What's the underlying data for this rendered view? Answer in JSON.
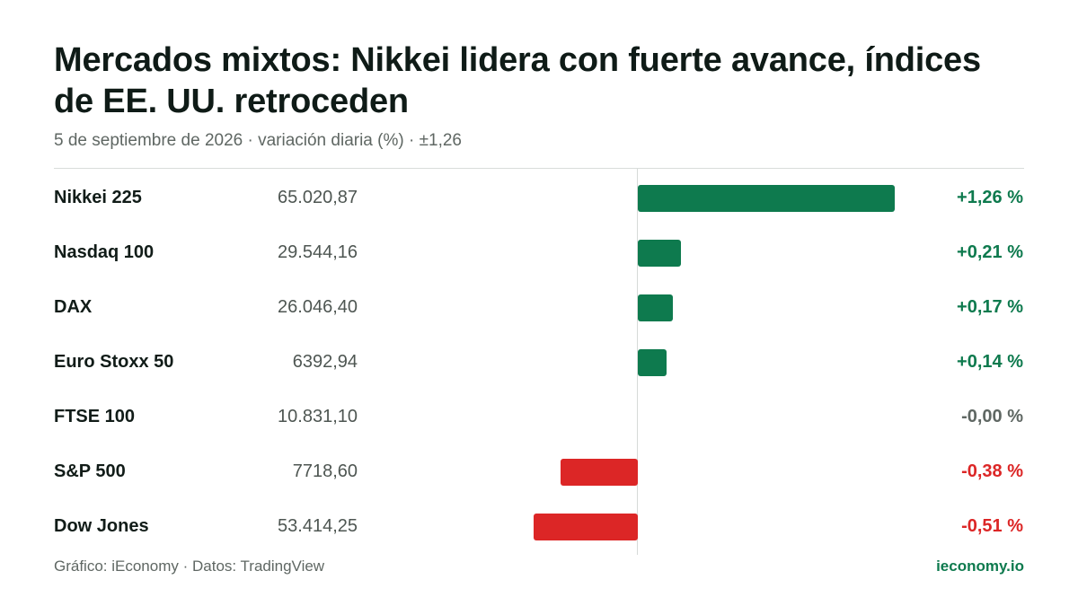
{
  "header": {
    "title": "Mercados mixtos: Nikkei lidera con fuerte avance, índices de EE. UU. retroceden",
    "subtitle": "5 de septiembre de 2026 · variación diaria (%) · ±1,26"
  },
  "colors": {
    "positive": "#0e7a4e",
    "negative": "#dc2626",
    "neutral": "#5f6763"
  },
  "chart_data": {
    "type": "bar",
    "orientation": "horizontal",
    "categories": [
      "Nikkei 225",
      "Nasdaq 100",
      "DAX",
      "Euro Stoxx 50",
      "FTSE 100",
      "S&P 500",
      "Dow Jones"
    ],
    "prices": [
      "65.020,87",
      "29.544,16",
      "26.046,40",
      "6392,94",
      "10.831,10",
      "7718,60",
      "53.414,25"
    ],
    "values": [
      1.26,
      0.21,
      0.17,
      0.14,
      -0.0,
      -0.38,
      -0.51
    ],
    "value_labels": [
      "+1,26 %",
      "+0,21 %",
      "+0,17 %",
      "+0,14 %",
      "-0,00 %",
      "-0,38 %",
      "-0,51 %"
    ],
    "xlim": [
      -1.26,
      1.26
    ],
    "grid": false
  },
  "footer": {
    "source": "Gráfico: iEconomy · Datos: TradingView",
    "brand": "ieconomy.io"
  }
}
